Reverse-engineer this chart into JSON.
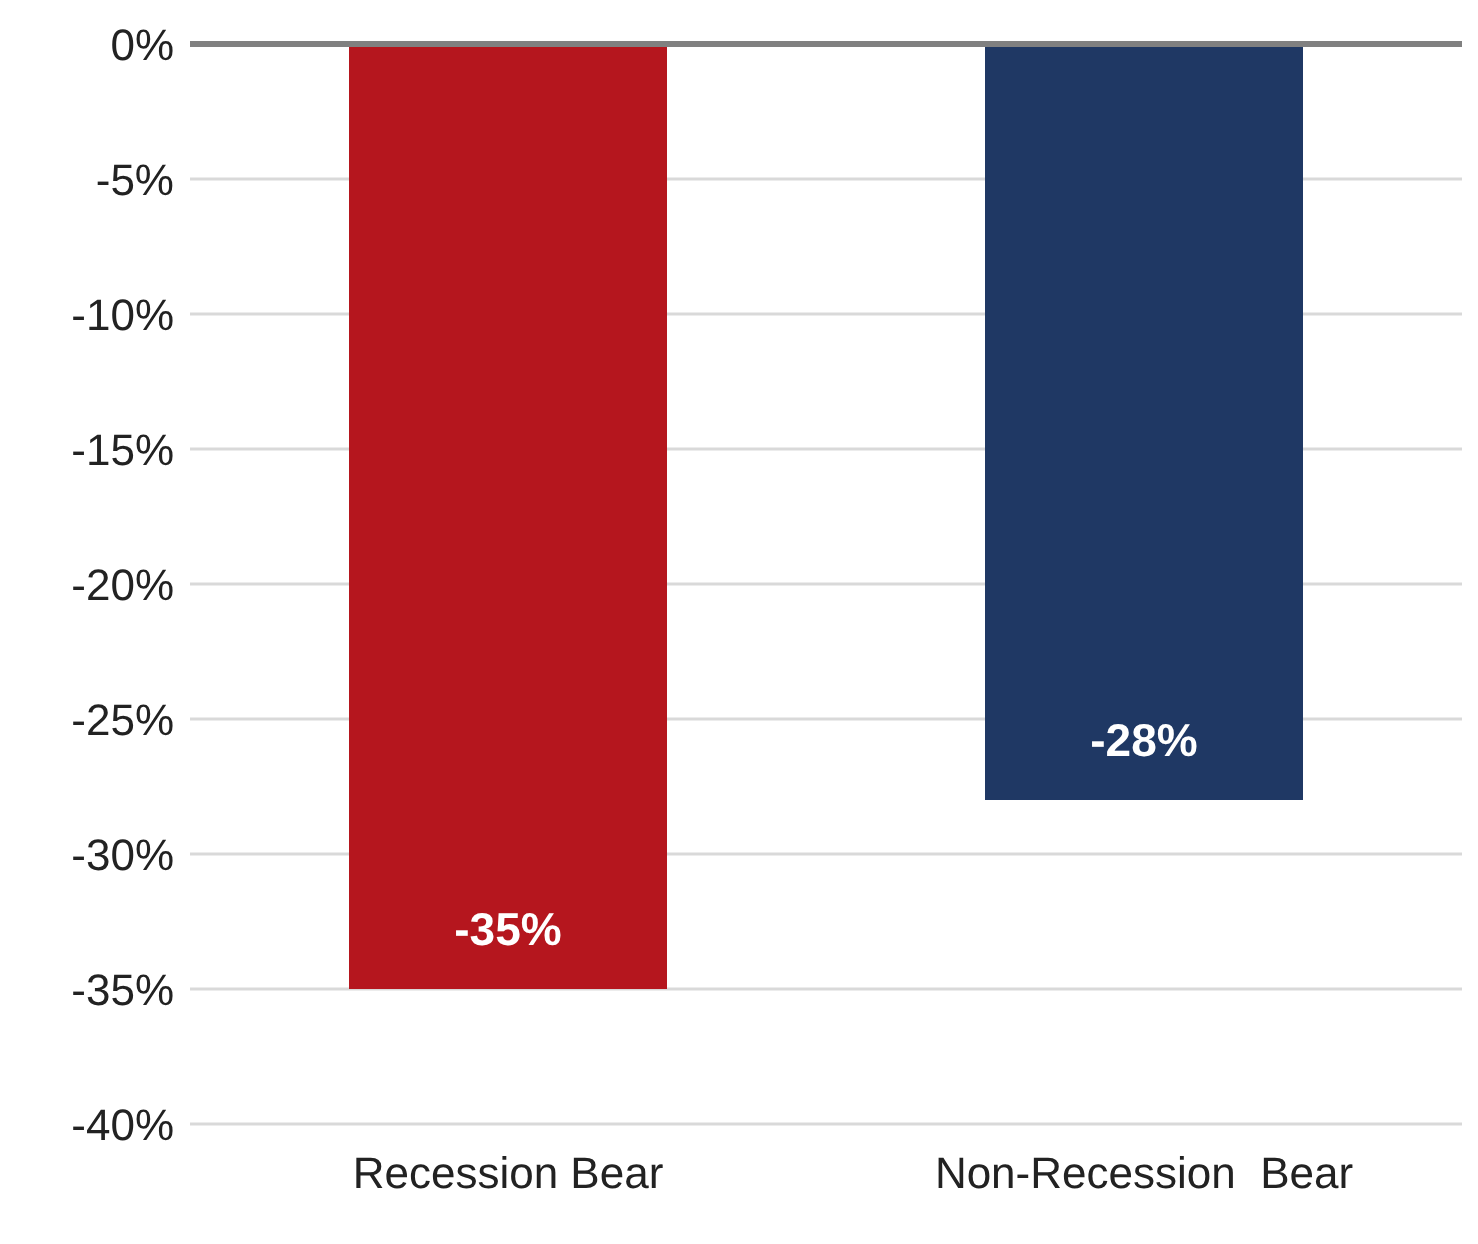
{
  "chart_data": {
    "type": "bar",
    "categories": [
      "Recession Bear",
      "Non-Recession  Bear"
    ],
    "values": [
      -35,
      -28
    ],
    "colors": [
      "#b5161e",
      "#1f3864"
    ],
    "value_labels": [
      "-35%",
      "-28%"
    ],
    "ylim": [
      -40,
      0
    ],
    "yticks": [
      {
        "value": 0,
        "label": "0%"
      },
      {
        "value": -5,
        "label": "-5%"
      },
      {
        "value": -10,
        "label": "-10%"
      },
      {
        "value": -15,
        "label": "-15%"
      },
      {
        "value": -20,
        "label": "-20%"
      },
      {
        "value": -25,
        "label": "-25%"
      },
      {
        "value": -30,
        "label": "-30%"
      },
      {
        "value": -35,
        "label": "-35%"
      },
      {
        "value": -40,
        "label": "-40%"
      }
    ],
    "grid": "y"
  }
}
